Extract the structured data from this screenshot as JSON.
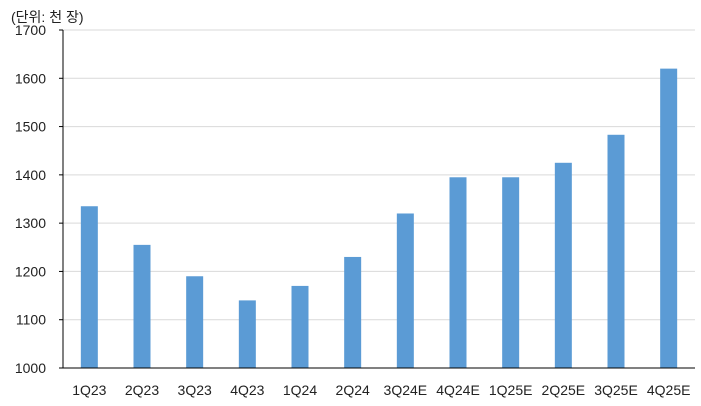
{
  "chart_data": {
    "type": "bar",
    "unit_label": "(단위: 천 장)",
    "categories": [
      "1Q23",
      "2Q23",
      "3Q23",
      "4Q23",
      "1Q24",
      "2Q24",
      "3Q24E",
      "4Q24E",
      "1Q25E",
      "2Q25E",
      "3Q25E",
      "4Q25E"
    ],
    "values": [
      1335,
      1255,
      1190,
      1140,
      1170,
      1230,
      1320,
      1395,
      1395,
      1425,
      1483,
      1620
    ],
    "ylim": [
      1000,
      1700
    ],
    "yticks": [
      1000,
      1100,
      1200,
      1300,
      1400,
      1500,
      1600,
      1700
    ],
    "grid": true,
    "bar_color": "#5B9BD5",
    "grid_color": "#D9D9D9",
    "axis_color": "#000000"
  }
}
